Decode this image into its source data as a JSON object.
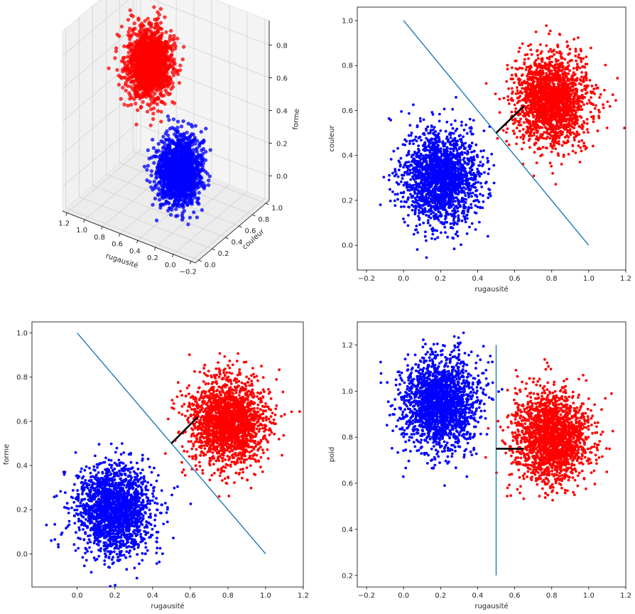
{
  "figure": {
    "colors": {
      "class_a": "#0000ff",
      "class_b": "#ff0000",
      "boundary": "#1f77b4",
      "distance": "#000000",
      "pane": "#f2f2f2"
    }
  },
  "chart_data": [
    {
      "id": "p3d",
      "type": "scatter3d",
      "xlabel": "rugausité",
      "ylabel": "couleur",
      "zlabel": "forme",
      "xticks": [
        "−0.2",
        "0.0",
        "0.2",
        "0.4",
        "0.6",
        "0.8",
        "1.0",
        "1.2"
      ],
      "yticks": [
        "0.0",
        "0.2",
        "0.4",
        "0.6",
        "0.8",
        "1.0"
      ],
      "zticks": [
        "0.0",
        "0.2",
        "0.4",
        "0.6",
        "0.8"
      ],
      "xlim": [
        -0.25,
        1.25
      ],
      "ylim": [
        -0.05,
        1.05
      ],
      "zlim": [
        -0.15,
        0.95
      ],
      "grid": true,
      "series": [
        {
          "color": "#0000ff",
          "center": [
            0.2,
            0.3,
            0.2
          ],
          "sd": 0.1,
          "n": 1500
        },
        {
          "color": "#ff0000",
          "center": [
            0.8,
            0.65,
            0.6
          ],
          "sd": 0.1,
          "n": 1500
        }
      ]
    },
    {
      "id": "p_tr",
      "type": "scatter",
      "xlabel": "rugausité",
      "ylabel": "couleur",
      "xticks": [
        "−0.2",
        "0.0",
        "0.2",
        "0.4",
        "0.6",
        "0.8",
        "1.0",
        "1.2"
      ],
      "yticks": [
        "0.0",
        "0.2",
        "0.4",
        "0.6",
        "0.8",
        "1.0"
      ],
      "xlim": [
        -0.25,
        1.2
      ],
      "ylim": [
        -0.11,
        1.06
      ],
      "series": [
        {
          "color": "#0000ff",
          "center": [
            0.2,
            0.3
          ],
          "sd": 0.1,
          "n": 2000
        },
        {
          "color": "#ff0000",
          "center": [
            0.8,
            0.65
          ],
          "sd": 0.1,
          "n": 2000
        }
      ],
      "lines": [
        {
          "color": "#1f77b4",
          "points": [
            [
              0.0,
              1.0
            ],
            [
              1.0,
              0.0
            ]
          ]
        },
        {
          "color": "#000000",
          "points": [
            [
              0.5,
              0.5
            ],
            [
              0.65,
              0.62
            ]
          ]
        }
      ]
    },
    {
      "id": "p_bl",
      "type": "scatter",
      "xlabel": "rugausité",
      "ylabel": "forme",
      "xticks": [
        "0.0",
        "0.2",
        "0.4",
        "0.6",
        "0.8",
        "1.0",
        "1.2"
      ],
      "yticks": [
        "0.0",
        "0.2",
        "0.4",
        "0.6",
        "0.8",
        "1.0"
      ],
      "xlim": [
        -0.24,
        1.2
      ],
      "ylim": [
        -0.15,
        1.05
      ],
      "series": [
        {
          "color": "#0000ff",
          "center": [
            0.2,
            0.2
          ],
          "sd": 0.1,
          "n": 2000
        },
        {
          "color": "#ff0000",
          "center": [
            0.8,
            0.6
          ],
          "sd": 0.1,
          "n": 2000
        }
      ],
      "lines": [
        {
          "color": "#1f77b4",
          "points": [
            [
              0.0,
              1.0
            ],
            [
              1.0,
              0.0
            ]
          ]
        },
        {
          "color": "#000000",
          "points": [
            [
              0.5,
              0.5
            ],
            [
              0.64,
              0.62
            ]
          ]
        }
      ]
    },
    {
      "id": "p_br",
      "type": "scatter",
      "xlabel": "rugausité",
      "ylabel": "poid",
      "xticks": [
        "−0.2",
        "0.0",
        "0.2",
        "0.4",
        "0.6",
        "0.8",
        "1.0",
        "1.2"
      ],
      "yticks": [
        "0.2",
        "0.4",
        "0.6",
        "0.8",
        "1.0",
        "1.2"
      ],
      "xlim": [
        -0.25,
        1.2
      ],
      "ylim": [
        0.15,
        1.3
      ],
      "series": [
        {
          "color": "#0000ff",
          "center": [
            0.2,
            0.95
          ],
          "sd": 0.1,
          "n": 2000
        },
        {
          "color": "#ff0000",
          "center": [
            0.8,
            0.8
          ],
          "sd": 0.1,
          "n": 2000
        }
      ],
      "lines": [
        {
          "color": "#1f77b4",
          "points": [
            [
              0.5,
              0.2
            ],
            [
              0.5,
              1.2
            ]
          ]
        },
        {
          "color": "#000000",
          "points": [
            [
              0.5,
              0.75
            ],
            [
              0.65,
              0.75
            ]
          ]
        }
      ]
    }
  ]
}
